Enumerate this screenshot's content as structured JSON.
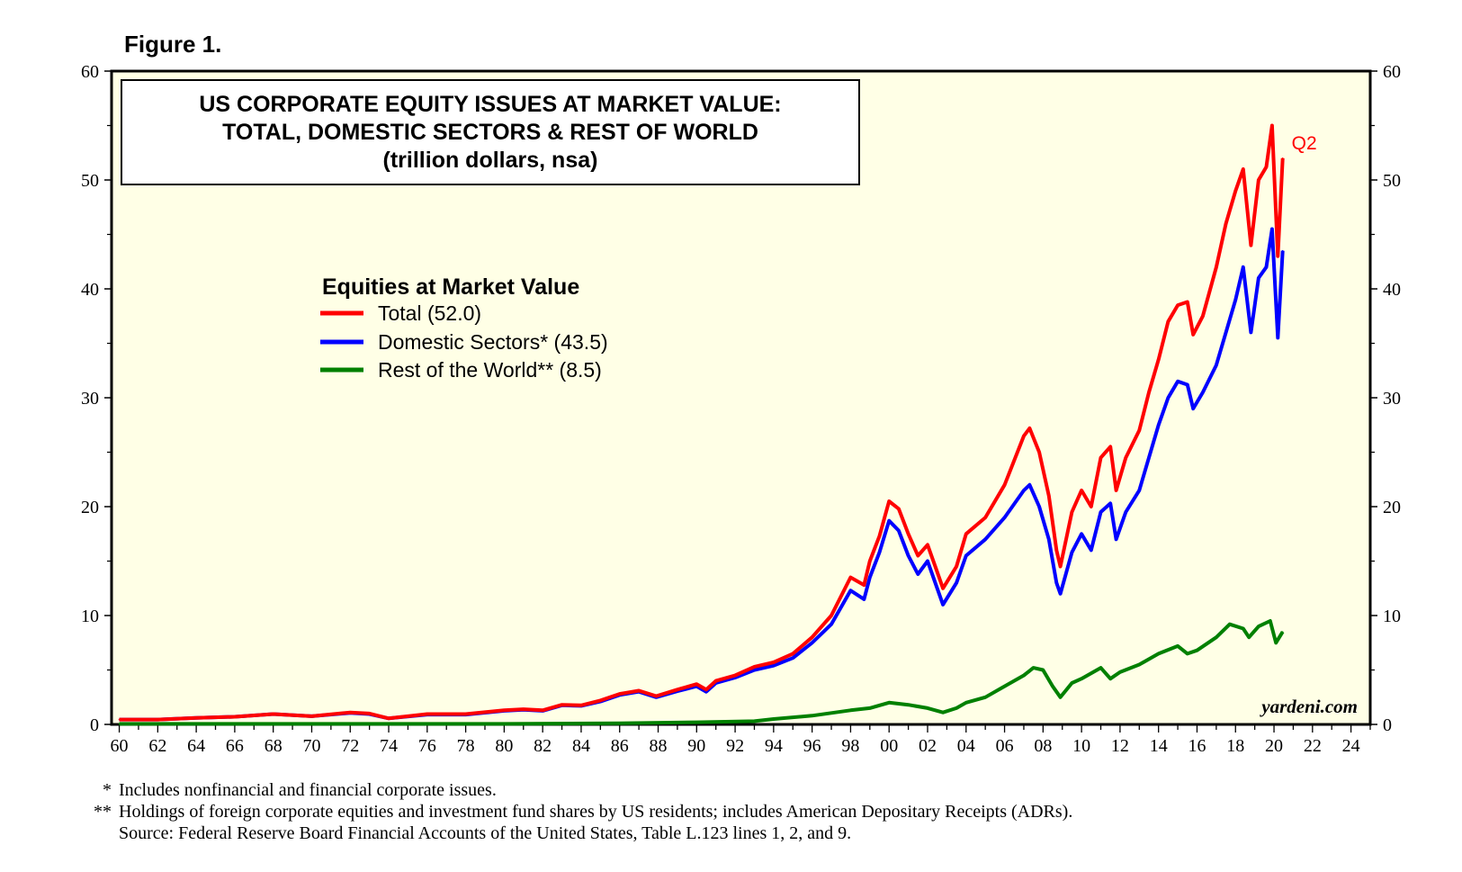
{
  "figure_label": "Figure 1.",
  "chart_data": {
    "type": "line",
    "title_lines": [
      "US CORPORATE EQUITY ISSUES AT MARKET VALUE:",
      "TOTAL, DOMESTIC SECTORS & REST OF WORLD",
      "(trillion dollars, nsa)"
    ],
    "ylim": [
      0,
      60
    ],
    "y_ticks": [
      0,
      10,
      20,
      30,
      40,
      50,
      60
    ],
    "xlim": [
      1959.6,
      2025.0
    ],
    "x_ticks": [
      1960,
      1962,
      1964,
      1966,
      1968,
      1970,
      1972,
      1974,
      1976,
      1978,
      1980,
      1982,
      1984,
      1986,
      1988,
      1990,
      1992,
      1994,
      1996,
      1998,
      2000,
      2002,
      2004,
      2006,
      2008,
      2010,
      2012,
      2014,
      2016,
      2018,
      2020,
      2022,
      2024
    ],
    "x_tick_labels": [
      "60",
      "62",
      "64",
      "66",
      "68",
      "70",
      "72",
      "74",
      "76",
      "78",
      "80",
      "82",
      "84",
      "86",
      "88",
      "90",
      "92",
      "94",
      "96",
      "98",
      "00",
      "02",
      "04",
      "06",
      "08",
      "10",
      "12",
      "14",
      "16",
      "18",
      "20",
      "22",
      "24"
    ],
    "legend_title": "Equities at Market Value",
    "annotation": "Q2",
    "watermark": "yardeni.com",
    "series": [
      {
        "name": "Total",
        "legend_label": "Total (52.0)",
        "color": "#ff0000",
        "points": [
          [
            1960,
            0.45
          ],
          [
            1962,
            0.45
          ],
          [
            1964,
            0.6
          ],
          [
            1966,
            0.7
          ],
          [
            1968,
            0.95
          ],
          [
            1970,
            0.75
          ],
          [
            1972,
            1.1
          ],
          [
            1973,
            1.0
          ],
          [
            1974,
            0.55
          ],
          [
            1976,
            0.95
          ],
          [
            1978,
            0.95
          ],
          [
            1980,
            1.3
          ],
          [
            1981,
            1.4
          ],
          [
            1982,
            1.3
          ],
          [
            1983,
            1.8
          ],
          [
            1984,
            1.75
          ],
          [
            1985,
            2.2
          ],
          [
            1986,
            2.8
          ],
          [
            1987,
            3.1
          ],
          [
            1987.9,
            2.6
          ],
          [
            1989,
            3.2
          ],
          [
            1990,
            3.7
          ],
          [
            1990.5,
            3.2
          ],
          [
            1991,
            4.0
          ],
          [
            1992,
            4.5
          ],
          [
            1993,
            5.3
          ],
          [
            1994,
            5.7
          ],
          [
            1995,
            6.5
          ],
          [
            1996,
            8.0
          ],
          [
            1997,
            10.0
          ],
          [
            1998,
            13.5
          ],
          [
            1998.7,
            12.8
          ],
          [
            1999,
            15.0
          ],
          [
            1999.5,
            17.3
          ],
          [
            2000,
            20.5
          ],
          [
            2000.5,
            19.8
          ],
          [
            2001,
            17.5
          ],
          [
            2001.5,
            15.5
          ],
          [
            2002,
            16.5
          ],
          [
            2002.5,
            14.0
          ],
          [
            2002.8,
            12.5
          ],
          [
            2003.5,
            14.5
          ],
          [
            2004,
            17.5
          ],
          [
            2005,
            19.0
          ],
          [
            2006,
            22.0
          ],
          [
            2007,
            26.5
          ],
          [
            2007.3,
            27.2
          ],
          [
            2007.8,
            25.0
          ],
          [
            2008.3,
            21.0
          ],
          [
            2008.7,
            16.0
          ],
          [
            2008.9,
            14.5
          ],
          [
            2009.5,
            19.5
          ],
          [
            2010,
            21.5
          ],
          [
            2010.5,
            20.0
          ],
          [
            2011,
            24.5
          ],
          [
            2011.5,
            25.5
          ],
          [
            2011.8,
            21.5
          ],
          [
            2012.3,
            24.5
          ],
          [
            2013,
            27.0
          ],
          [
            2013.5,
            30.5
          ],
          [
            2014,
            33.5
          ],
          [
            2014.5,
            37.0
          ],
          [
            2015,
            38.5
          ],
          [
            2015.5,
            38.8
          ],
          [
            2015.8,
            35.8
          ],
          [
            2016.3,
            37.5
          ],
          [
            2017,
            42.0
          ],
          [
            2017.5,
            46.0
          ],
          [
            2018,
            49.0
          ],
          [
            2018.4,
            51.0
          ],
          [
            2018.8,
            44.0
          ],
          [
            2019.2,
            50.0
          ],
          [
            2019.6,
            51.2
          ],
          [
            2019.9,
            55.0
          ],
          [
            2020.2,
            43.0
          ],
          [
            2020.45,
            52.0
          ]
        ]
      },
      {
        "name": "Domestic Sectors",
        "legend_label": "Domestic Sectors* (43.5)",
        "color": "#0000ff",
        "points": [
          [
            1960,
            0.45
          ],
          [
            1962,
            0.45
          ],
          [
            1964,
            0.6
          ],
          [
            1966,
            0.7
          ],
          [
            1968,
            0.95
          ],
          [
            1970,
            0.75
          ],
          [
            1972,
            1.05
          ],
          [
            1973,
            0.95
          ],
          [
            1974,
            0.55
          ],
          [
            1976,
            0.9
          ],
          [
            1978,
            0.9
          ],
          [
            1980,
            1.25
          ],
          [
            1981,
            1.35
          ],
          [
            1982,
            1.25
          ],
          [
            1983,
            1.75
          ],
          [
            1984,
            1.7
          ],
          [
            1985,
            2.1
          ],
          [
            1986,
            2.7
          ],
          [
            1987,
            3.0
          ],
          [
            1987.9,
            2.5
          ],
          [
            1989,
            3.05
          ],
          [
            1990,
            3.5
          ],
          [
            1990.5,
            3.0
          ],
          [
            1991,
            3.8
          ],
          [
            1992,
            4.3
          ],
          [
            1993,
            5.0
          ],
          [
            1994,
            5.4
          ],
          [
            1995,
            6.1
          ],
          [
            1996,
            7.5
          ],
          [
            1997,
            9.2
          ],
          [
            1998,
            12.3
          ],
          [
            1998.7,
            11.5
          ],
          [
            1999,
            13.5
          ],
          [
            1999.5,
            15.8
          ],
          [
            2000,
            18.7
          ],
          [
            2000.5,
            17.8
          ],
          [
            2001,
            15.5
          ],
          [
            2001.5,
            13.8
          ],
          [
            2002,
            15.0
          ],
          [
            2002.5,
            12.5
          ],
          [
            2002.8,
            11.0
          ],
          [
            2003.5,
            13.0
          ],
          [
            2004,
            15.5
          ],
          [
            2005,
            17.0
          ],
          [
            2006,
            19.0
          ],
          [
            2007,
            21.5
          ],
          [
            2007.3,
            22.0
          ],
          [
            2007.8,
            20.0
          ],
          [
            2008.3,
            17.0
          ],
          [
            2008.7,
            13.0
          ],
          [
            2008.9,
            12.0
          ],
          [
            2009.5,
            15.8
          ],
          [
            2010,
            17.5
          ],
          [
            2010.5,
            16.0
          ],
          [
            2011,
            19.5
          ],
          [
            2011.5,
            20.3
          ],
          [
            2011.8,
            17.0
          ],
          [
            2012.3,
            19.5
          ],
          [
            2013,
            21.5
          ],
          [
            2013.5,
            24.5
          ],
          [
            2014,
            27.5
          ],
          [
            2014.5,
            30.0
          ],
          [
            2015,
            31.5
          ],
          [
            2015.5,
            31.2
          ],
          [
            2015.8,
            29.0
          ],
          [
            2016.3,
            30.5
          ],
          [
            2017,
            33.0
          ],
          [
            2017.5,
            36.0
          ],
          [
            2018,
            39.0
          ],
          [
            2018.4,
            42.0
          ],
          [
            2018.8,
            36.0
          ],
          [
            2019.2,
            41.0
          ],
          [
            2019.6,
            42.0
          ],
          [
            2019.9,
            45.5
          ],
          [
            2020.2,
            35.5
          ],
          [
            2020.45,
            43.5
          ]
        ]
      },
      {
        "name": "Rest of the World",
        "legend_label": "Rest of the World** (8.5)",
        "color": "#008000",
        "points": [
          [
            1960,
            0.05
          ],
          [
            1970,
            0.05
          ],
          [
            1980,
            0.05
          ],
          [
            1986,
            0.1
          ],
          [
            1990,
            0.2
          ],
          [
            1993,
            0.3
          ],
          [
            1994,
            0.5
          ],
          [
            1996,
            0.8
          ],
          [
            1998,
            1.3
          ],
          [
            1999,
            1.5
          ],
          [
            2000,
            2.0
          ],
          [
            2001,
            1.8
          ],
          [
            2002,
            1.5
          ],
          [
            2002.8,
            1.1
          ],
          [
            2003.5,
            1.5
          ],
          [
            2004,
            2.0
          ],
          [
            2005,
            2.5
          ],
          [
            2006,
            3.5
          ],
          [
            2007,
            4.5
          ],
          [
            2007.5,
            5.2
          ],
          [
            2008,
            5.0
          ],
          [
            2008.5,
            3.5
          ],
          [
            2008.9,
            2.5
          ],
          [
            2009.5,
            3.8
          ],
          [
            2010,
            4.2
          ],
          [
            2011,
            5.2
          ],
          [
            2011.5,
            4.2
          ],
          [
            2012,
            4.8
          ],
          [
            2013,
            5.5
          ],
          [
            2014,
            6.5
          ],
          [
            2015,
            7.2
          ],
          [
            2015.5,
            6.5
          ],
          [
            2016,
            6.8
          ],
          [
            2017,
            8.0
          ],
          [
            2017.7,
            9.2
          ],
          [
            2018.4,
            8.8
          ],
          [
            2018.7,
            8.0
          ],
          [
            2019.2,
            9.0
          ],
          [
            2019.8,
            9.5
          ],
          [
            2020.1,
            7.5
          ],
          [
            2020.45,
            8.5
          ]
        ]
      }
    ]
  },
  "footnotes": [
    {
      "mark": "*",
      "text": "Includes nonfinancial and financial corporate issues."
    },
    {
      "mark": "**",
      "text": "Holdings of foreign corporate equities and investment fund shares by US residents; includes American Depositary Receipts (ADRs)."
    },
    {
      "mark": "",
      "text": "Source: Federal Reserve Board Financial Accounts of the United States, Table L.123 lines 1, 2, and 9."
    }
  ]
}
